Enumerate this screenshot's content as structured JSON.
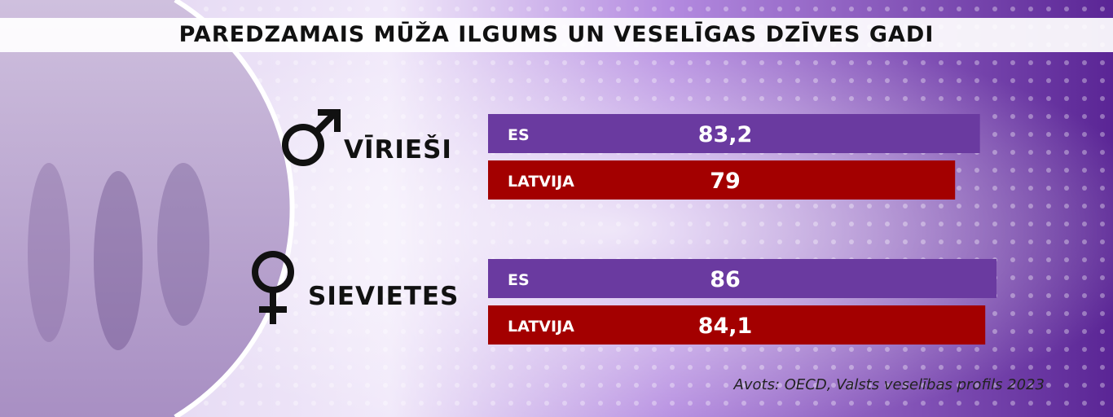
{
  "title": "PAREDZAMAIS MŪŽA ILGUMS UN VESELĪGAS DZĪVES GADI",
  "source": "Avots: OECD, Valsts veselības profils 2023",
  "colors": {
    "es": "#6a3aa0",
    "latvija": "#a30000",
    "background": "#8c5fc4"
  },
  "icons": {
    "men": "male-symbol-icon",
    "women": "female-symbol-icon"
  },
  "chart_data": {
    "type": "bar",
    "orientation": "horizontal",
    "title": "PAREDZAMAIS MŪŽA ILGUMS UN VESELĪGAS DZĪVES GADI",
    "groups": [
      {
        "label": "VĪRIEŠI",
        "bars": [
          {
            "category": "ES",
            "value": 83.2,
            "display": "83,2"
          },
          {
            "category": "LATVIJA",
            "value": 79,
            "display": "79"
          }
        ]
      },
      {
        "label": "SIEVIETES",
        "bars": [
          {
            "category": "ES",
            "value": 86,
            "display": "86"
          },
          {
            "category": "LATVIJA",
            "value": 84.1,
            "display": "84,1"
          }
        ]
      }
    ]
  }
}
